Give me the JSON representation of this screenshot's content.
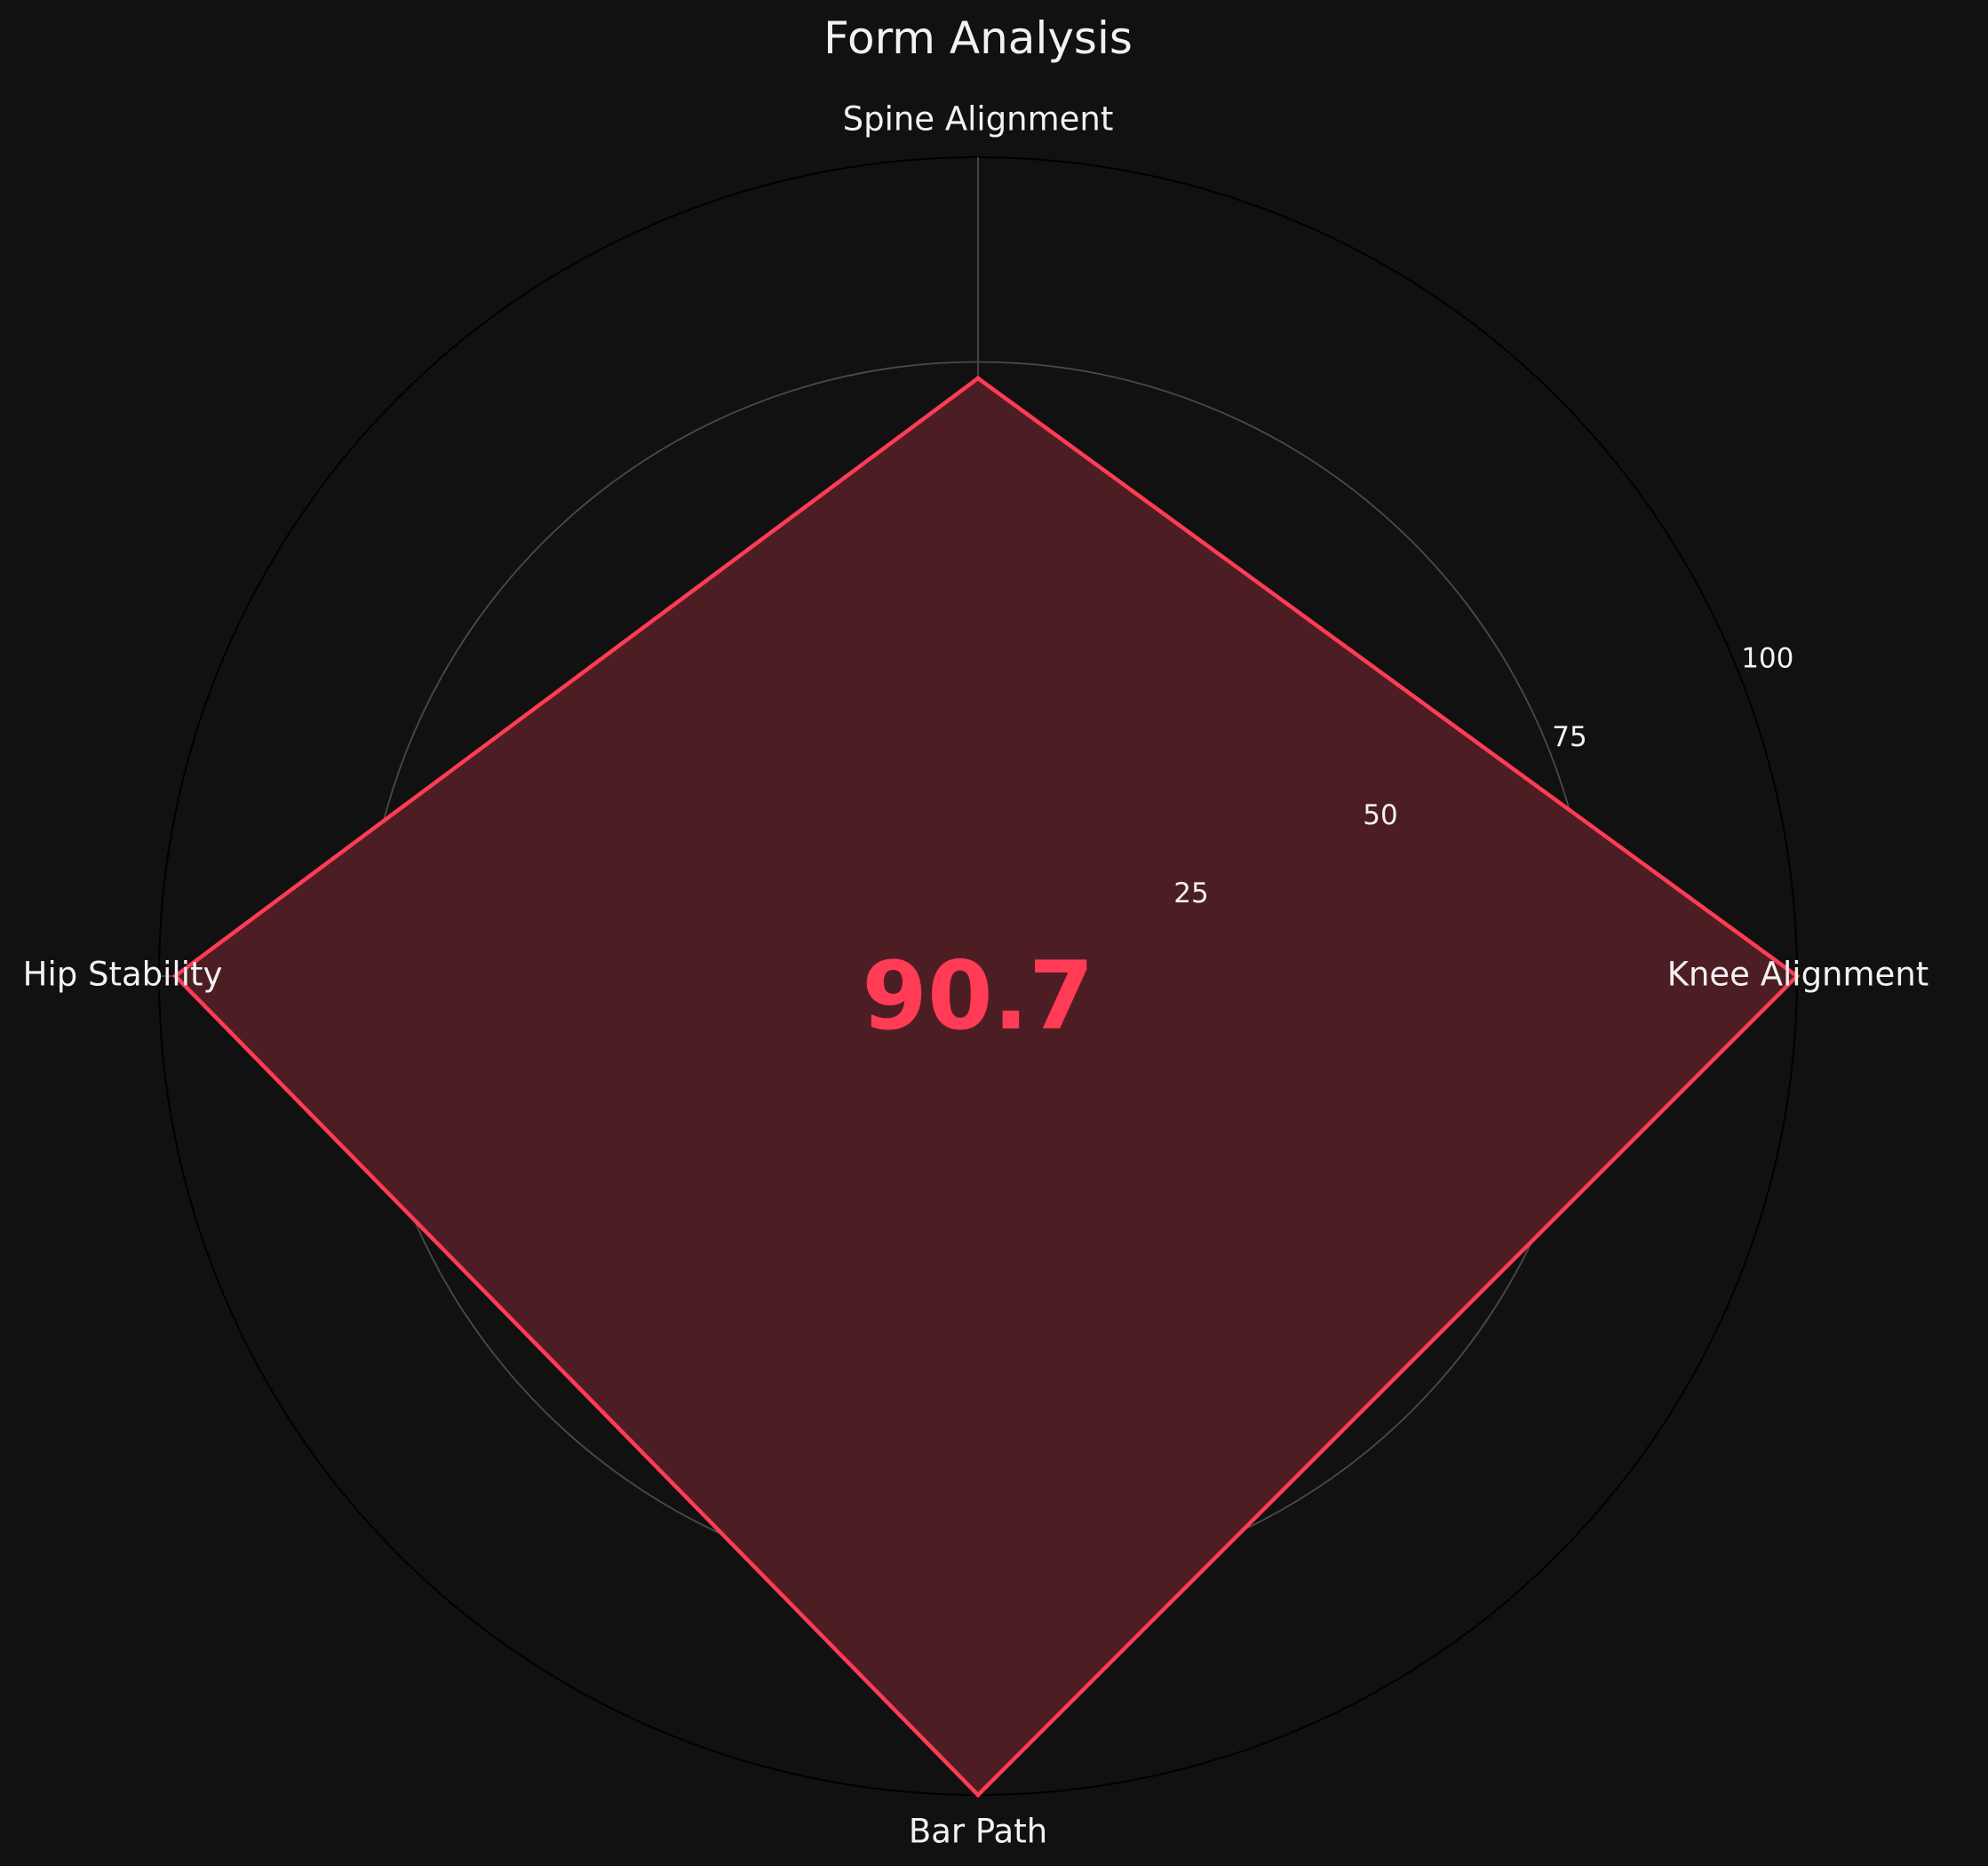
{
  "chart_data": {
    "type": "radar",
    "title": "Form Analysis",
    "axes": [
      "Knee Alignment",
      "Spine Alignment",
      "Hip Stability",
      "Bar Path"
    ],
    "values": [
      100,
      73,
      98,
      100
    ],
    "rlim": [
      0,
      100
    ],
    "rticks": [
      25,
      50,
      75,
      100
    ],
    "rtick_labels": [
      "25",
      "50",
      "75",
      "100"
    ],
    "center_value": "90.7",
    "colors": {
      "background": "#111111",
      "line": "#ff3b55",
      "fill": "#4d1d24",
      "grid": "#4a4a4a",
      "outer_ring": "#000000",
      "text": "#f2f2f2"
    }
  }
}
